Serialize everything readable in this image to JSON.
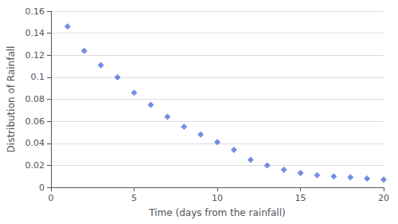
{
  "chart_data": {
    "type": "scatter",
    "xlabel": "Time (days from the rainfall)",
    "ylabel": "Distribution of Rainfall",
    "x": [
      1,
      2,
      3,
      4,
      5,
      6,
      7,
      8,
      9,
      10,
      11,
      12,
      13,
      14,
      15,
      16,
      17,
      18,
      19,
      20
    ],
    "values": [
      0.146,
      0.124,
      0.111,
      0.1,
      0.086,
      0.075,
      0.064,
      0.055,
      0.048,
      0.041,
      0.034,
      0.025,
      0.02,
      0.016,
      0.013,
      0.011,
      0.01,
      0.009,
      0.008,
      0.007
    ],
    "xlim": [
      0,
      20
    ],
    "ylim": [
      0,
      0.16
    ],
    "xticks": [
      0,
      5,
      10,
      15,
      20
    ],
    "yticks": [
      0,
      0.02,
      0.04,
      0.06,
      0.08,
      0.1,
      0.12,
      0.14,
      0.16
    ],
    "grid": true,
    "marker": "diamond"
  }
}
